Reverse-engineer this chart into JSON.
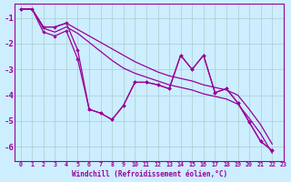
{
  "background_color": "#cceeff",
  "line_color": "#990099",
  "grid_color": "#aacccc",
  "xlabel": "Windchill (Refroidissement éolien,°C)",
  "xlim": [
    -0.5,
    23
  ],
  "ylim": [
    -6.55,
    -0.45
  ],
  "xticks": [
    0,
    1,
    2,
    3,
    4,
    5,
    6,
    7,
    8,
    9,
    10,
    11,
    12,
    13,
    14,
    15,
    16,
    17,
    18,
    19,
    20,
    21,
    22,
    23
  ],
  "yticks": [
    -1,
    -2,
    -3,
    -4,
    -5,
    -6
  ],
  "line1_x": [
    0,
    1,
    2,
    3,
    4,
    5,
    6,
    7,
    8,
    9,
    10,
    11,
    12,
    13,
    14,
    15,
    16,
    17,
    18,
    19,
    20,
    21,
    22
  ],
  "line1_y": [
    -0.65,
    -0.65,
    -1.35,
    -1.35,
    -1.2,
    -2.25,
    -4.55,
    -4.7,
    -4.95,
    -4.4,
    -3.5,
    -3.5,
    -3.6,
    -3.75,
    -2.45,
    -3.0,
    -2.45,
    -3.9,
    -3.75,
    -4.3,
    -5.05,
    -5.8,
    -6.15
  ],
  "line2_x": [
    0,
    1,
    2,
    3,
    4,
    5,
    6,
    7,
    8,
    9,
    10,
    11,
    12,
    13,
    14,
    15,
    16,
    17,
    18,
    19,
    20,
    21,
    22
  ],
  "line2_y": [
    -0.65,
    -0.65,
    -1.35,
    -1.35,
    -1.2,
    -1.45,
    -1.7,
    -1.95,
    -2.2,
    -2.45,
    -2.7,
    -2.9,
    -3.1,
    -3.25,
    -3.35,
    -3.45,
    -3.6,
    -3.7,
    -3.8,
    -4.0,
    -4.55,
    -5.15,
    -5.9
  ],
  "line3_x": [
    0,
    1,
    2,
    3,
    4,
    5,
    6,
    7,
    8,
    9,
    10,
    11,
    12,
    13,
    14,
    15,
    16,
    17,
    18,
    19,
    20,
    21,
    22
  ],
  "line3_y": [
    -0.65,
    -0.65,
    -1.4,
    -1.55,
    -1.35,
    -1.6,
    -1.95,
    -2.3,
    -2.65,
    -2.95,
    -3.15,
    -3.3,
    -3.45,
    -3.6,
    -3.7,
    -3.8,
    -3.95,
    -4.05,
    -4.15,
    -4.35,
    -4.9,
    -5.5,
    -6.25
  ],
  "line4_x": [
    0,
    1,
    2,
    3,
    4,
    5,
    6,
    7,
    8,
    9,
    10,
    11,
    12,
    13,
    14,
    15,
    16,
    17,
    18,
    19,
    20,
    21,
    22
  ],
  "line4_y": [
    -0.65,
    -0.65,
    -1.55,
    -1.7,
    -1.5,
    -2.6,
    -4.55,
    -4.7,
    -4.95,
    -4.4,
    -3.5,
    -3.5,
    -3.6,
    -3.75,
    -2.45,
    -3.0,
    -2.45,
    -3.9,
    -3.75,
    -4.3,
    -5.05,
    -5.8,
    -6.15
  ]
}
